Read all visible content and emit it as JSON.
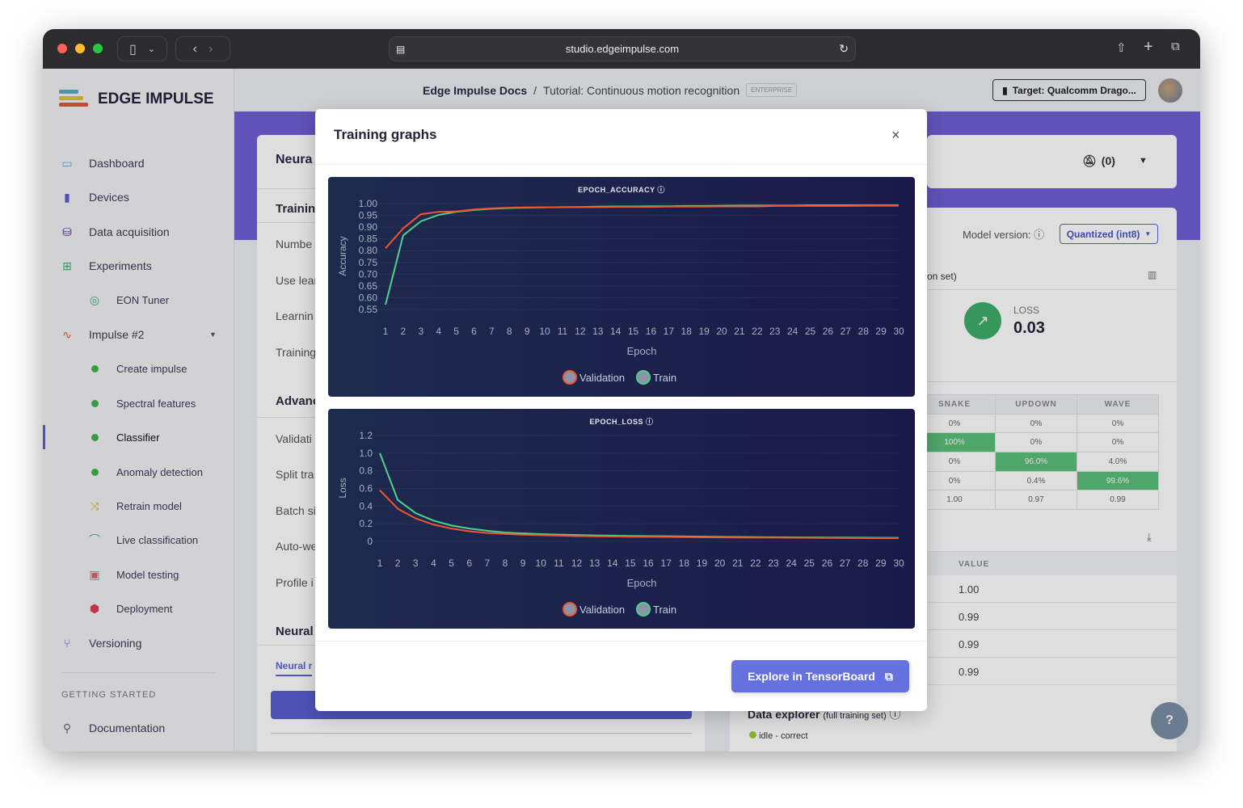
{
  "browser": {
    "url": "studio.edgeimpulse.com"
  },
  "brand": {
    "name": "EDGE IMPULSE"
  },
  "header": {
    "breadcrumb_root": "Edge Impulse Docs",
    "separator": "/",
    "project": "Tutorial: Continuous motion recognition",
    "badge": "ENTERPRISE",
    "target": "Target: Qualcomm Drago..."
  },
  "sidebar": {
    "items": [
      {
        "label": "Dashboard",
        "icon": "monitor-icon"
      },
      {
        "label": "Devices",
        "icon": "chip-icon"
      },
      {
        "label": "Data acquisition",
        "icon": "database-icon"
      },
      {
        "label": "Experiments",
        "icon": "grid-icon"
      },
      {
        "label": "EON Tuner",
        "icon": "compass-icon"
      },
      {
        "label": "Impulse #2",
        "icon": "pulse-icon"
      },
      {
        "label": "Create impulse",
        "icon": "dot-icon"
      },
      {
        "label": "Spectral features",
        "icon": "dot-icon"
      },
      {
        "label": "Classifier",
        "icon": "dot-icon"
      },
      {
        "label": "Anomaly detection",
        "icon": "dot-icon"
      },
      {
        "label": "Retrain model",
        "icon": "shuffle-icon"
      },
      {
        "label": "Live classification",
        "icon": "signal-icon"
      },
      {
        "label": "Model testing",
        "icon": "clipboard-icon"
      },
      {
        "label": "Deployment",
        "icon": "box-icon"
      },
      {
        "label": "Versioning",
        "icon": "branch-icon"
      }
    ],
    "section": "GETTING STARTED",
    "documentation": "Documentation"
  },
  "left_panel": {
    "title": "Neura",
    "training": "Trainin",
    "rows": [
      "Numbe",
      "Use lear",
      "Learnin",
      "Training"
    ],
    "advanced": "Advanc",
    "adv_rows": [
      "Validati",
      "Split tra",
      "Batch si",
      "Auto-we",
      "Profile i"
    ],
    "neural": "Neural",
    "tab": "Neural r"
  },
  "right_panel": {
    "notifications": "(0)",
    "model_version_label": "Model version:",
    "model_version": "Quantized (int8)",
    "set_label": "on set)",
    "loss_label": "LOSS",
    "loss_value": "0.03",
    "matrix": {
      "headers": [
        "SNAKE",
        "UPDOWN",
        "WAVE"
      ],
      "rows": [
        [
          "0%",
          "0%",
          "0%"
        ],
        [
          "100%",
          "0%",
          "0%"
        ],
        [
          "0%",
          "96.0%",
          "4.0%"
        ],
        [
          "0%",
          "0.4%",
          "99.6%"
        ],
        [
          "1.00",
          "0.97",
          "0.99"
        ]
      ]
    },
    "value_header": "VALUE",
    "values": [
      "1.00",
      "0.99",
      "0.99",
      "0.99"
    ],
    "data_explorer": "Data explorer",
    "data_explorer_sub": "(full training set)",
    "explorer_item": "idle - correct"
  },
  "modal": {
    "title": "Training graphs",
    "close": "×",
    "button": "Explore in TensorBoard"
  },
  "colors": {
    "validation": "#f0552d",
    "train": "#4fd18b",
    "accent": "#6671e0",
    "band": "#6e5fd4"
  },
  "chart_data": [
    {
      "type": "line",
      "title": "EPOCH_ACCURACY",
      "xlabel": "Epoch",
      "ylabel": "Accuracy",
      "ylim": [
        0.55,
        1.0
      ],
      "yticks": [
        "1.00",
        "0.95",
        "0.90",
        "0.85",
        "0.80",
        "0.75",
        "0.70",
        "0.65",
        "0.60",
        "0.55"
      ],
      "x": [
        1,
        2,
        3,
        4,
        5,
        6,
        7,
        8,
        9,
        10,
        11,
        12,
        13,
        14,
        15,
        16,
        17,
        18,
        19,
        20,
        21,
        22,
        23,
        24,
        25,
        26,
        27,
        28,
        29,
        30
      ],
      "legend": "bottom",
      "grid": true,
      "series": [
        {
          "name": "Validation",
          "values": [
            0.81,
            0.895,
            0.955,
            0.965,
            0.967,
            0.975,
            0.98,
            0.983,
            0.984,
            0.984,
            0.985,
            0.985,
            0.985,
            0.986,
            0.986,
            0.986,
            0.987,
            0.987,
            0.987,
            0.988,
            0.988,
            0.988,
            0.99,
            0.99,
            0.99,
            0.99,
            0.99,
            0.991,
            0.991,
            0.991
          ]
        },
        {
          "name": "Train",
          "values": [
            0.57,
            0.865,
            0.925,
            0.952,
            0.965,
            0.973,
            0.978,
            0.981,
            0.983,
            0.984,
            0.985,
            0.986,
            0.987,
            0.988,
            0.988,
            0.989,
            0.989,
            0.99,
            0.99,
            0.991,
            0.992,
            0.992,
            0.992,
            0.992,
            0.993,
            0.993,
            0.993,
            0.993,
            0.993,
            0.993
          ]
        }
      ]
    },
    {
      "type": "line",
      "title": "EPOCH_LOSS",
      "xlabel": "Epoch",
      "ylabel": "Loss",
      "ylim": [
        0,
        1.2
      ],
      "yticks": [
        "1.2",
        "1.0",
        "0.8",
        "0.6",
        "0.4",
        "0.2",
        "0"
      ],
      "x": [
        1,
        2,
        3,
        4,
        5,
        6,
        7,
        8,
        9,
        10,
        11,
        12,
        13,
        14,
        15,
        16,
        17,
        18,
        19,
        20,
        21,
        22,
        23,
        24,
        25,
        26,
        27,
        28,
        29,
        30
      ],
      "legend": "bottom",
      "grid": true,
      "series": [
        {
          "name": "Validation",
          "values": [
            0.58,
            0.37,
            0.26,
            0.19,
            0.145,
            0.115,
            0.095,
            0.085,
            0.075,
            0.07,
            0.065,
            0.06,
            0.057,
            0.055,
            0.053,
            0.051,
            0.05,
            0.048,
            0.046,
            0.045,
            0.044,
            0.043,
            0.042,
            0.041,
            0.04,
            0.039,
            0.038,
            0.037,
            0.036,
            0.035
          ]
        },
        {
          "name": "Train",
          "values": [
            1.0,
            0.47,
            0.32,
            0.235,
            0.18,
            0.145,
            0.12,
            0.1,
            0.09,
            0.083,
            0.077,
            0.072,
            0.068,
            0.065,
            0.062,
            0.06,
            0.058,
            0.056,
            0.054,
            0.052,
            0.05,
            0.048,
            0.047,
            0.046,
            0.045,
            0.044,
            0.043,
            0.042,
            0.041,
            0.04
          ]
        }
      ]
    }
  ]
}
